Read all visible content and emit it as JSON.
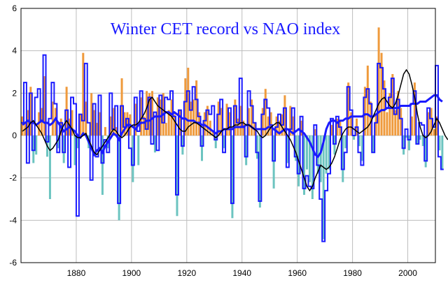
{
  "chart_data": {
    "type": "bar",
    "title": "Winter CET record vs NAO index",
    "xlabel": "",
    "ylabel": "",
    "xlim": [
      1860,
      2010
    ],
    "ylim": [
      -6,
      6
    ],
    "x_ticks": [
      1880,
      1900,
      1920,
      1940,
      1960,
      1980,
      2000
    ],
    "y_ticks": [
      -6,
      -4,
      -2,
      0,
      2,
      4,
      6
    ],
    "grid": true,
    "legend": "none",
    "colors": {
      "positive": "#ef9a3c",
      "negative": "#6cc4c0",
      "step": "#1a1aff",
      "running_mean": "#1a1aff",
      "smooth": "#000000"
    },
    "series": [
      {
        "kind": "bars",
        "start_year": 1860,
        "values": [
          0.9,
          0.6,
          1.2,
          2.3,
          -1.3,
          -0.9,
          1.1,
          1.3,
          2.8,
          -1.0,
          -3.0,
          1.6,
          1.3,
          -0.6,
          0.8,
          -1.3,
          2.3,
          0.8,
          1.2,
          -1.4,
          -0.6,
          1.0,
          3.9,
          1.6,
          -0.6,
          2.0,
          1.2,
          0.6,
          1.1,
          -2.8,
          0.4,
          -0.6,
          0.9,
          1.3,
          0.4,
          -4.0,
          2.7,
          1.1,
          1.1,
          1.0,
          -2.2,
          1.5,
          -1.4,
          1.8,
          0.9,
          2.1,
          2.0,
          2.1,
          -0.8,
          1.8,
          1.7,
          2.0,
          0.6,
          1.2,
          1.7,
          1.0,
          -3.8,
          1.2,
          -0.9,
          2.7,
          3.2,
          1.6,
          1.7,
          2.6,
          1.1,
          -1.2,
          1.1,
          1.4,
          0.7,
          0.2,
          -0.6,
          1.6,
          1.3,
          -0.6,
          1.5,
          1.1,
          -3.9,
          1.7,
          0.8,
          1.4,
          0.7,
          -1.4,
          1.3,
          1.7,
          0.6,
          -1.1,
          -3.4,
          1.3,
          2.2,
          0.9,
          1.1,
          -2.5,
          0.9,
          0.7,
          1.0,
          1.9,
          -1.3,
          1.4,
          0.9,
          -1.2,
          -2.4,
          0.7,
          -2.8,
          -1.6,
          -2.2,
          -3.0,
          0.3,
          -1.8,
          -2.2,
          -4.9,
          -1.8,
          -1.6,
          0.5,
          -0.9,
          0.8,
          0.7,
          -2.2,
          -0.6,
          2.5,
          1.1,
          -0.2,
          0.8,
          -0.5,
          -1.2,
          2.3,
          3.3,
          1.6,
          -0.8,
          1.0,
          5.1,
          3.9,
          2.6,
          1.1,
          2.0,
          2.9,
          1.2,
          2.1,
          1.3,
          -0.9,
          -0.1,
          -0.7,
          0.9,
          2.5,
          -0.4,
          -0.2,
          -0.5,
          -1.5,
          1.1,
          1.3,
          0.3,
          0.9,
          -0.7,
          -1.6
        ]
      },
      {
        "kind": "step",
        "start_year": 1860,
        "values": [
          0.6,
          2.5,
          -1.3,
          2.0,
          -0.7,
          1.8,
          2.2,
          0.7,
          3.8,
          -0.3,
          0.8,
          2.5,
          1.5,
          -0.8,
          0.6,
          -0.8,
          1.2,
          -1.5,
          1.8,
          1.5,
          -3.8,
          1.0,
          0.7,
          3.4,
          0.6,
          -2.1,
          1.5,
          -1.0,
          1.9,
          -1.3,
          -0.2,
          -0.8,
          2.0,
          0.3,
          1.4,
          -3.2,
          1.4,
          0.4,
          0.8,
          -0.6,
          -1.4,
          1.8,
          0.2,
          2.1,
          0.8,
          0.3,
          1.8,
          -0.4,
          1.1,
          -0.7,
          1.9,
          0.6,
          1.8,
          1.7,
          2.1,
          0.9,
          -2.8,
          1.2,
          -0.5,
          1.6,
          2.1,
          1.2,
          2.3,
          1.7,
          0.9,
          -0.5,
          0.7,
          1.2,
          1.0,
          1.4,
          -0.2,
          1.0,
          1.7,
          -0.8,
          0.3,
          1.3,
          -3.2,
          1.4,
          0.6,
          2.7,
          0.4,
          -1.0,
          2.1,
          1.4,
          0.6,
          -0.8,
          -3.1,
          1.0,
          1.7,
          1.3,
          0.5,
          -1.2,
          0.4,
          1.0,
          0.5,
          1.3,
          -1.5,
          0.3,
          1.3,
          -1.0,
          -1.8,
          0.9,
          -2.5,
          -1.9,
          -2.4,
          -2.5,
          0.5,
          -1.4,
          -3.0,
          -5.0,
          -2.6,
          -1.8,
          0.8,
          -0.4,
          0.9,
          0.4,
          -1.6,
          -0.8,
          2.3,
          1.2,
          0.0,
          0.4,
          -0.8,
          -1.4,
          1.8,
          2.2,
          1.5,
          -0.8,
          0.6,
          3.4,
          3.2,
          2.2,
          1.3,
          1.8,
          2.7,
          1.0,
          1.7,
          0.8,
          -0.6,
          0.3,
          -0.2,
          1.5,
          2.1,
          -0.4,
          0.6,
          0.5,
          -1.2,
          1.3,
          0.8,
          0.4,
          3.3,
          -1.0,
          -1.6
        ]
      },
      {
        "kind": "running_mean",
        "start_year": 1860,
        "values": [
          0.5,
          0.6,
          0.7,
          0.6,
          0.6,
          0.5,
          0.6,
          0.7,
          0.6,
          0.6,
          0.5,
          0.6,
          0.8,
          0.6,
          0.4,
          0.2,
          0.3,
          0.4,
          0.3,
          0.2,
          0.0,
          -0.1,
          0.1,
          0.0,
          -0.3,
          -0.6,
          -0.9,
          -0.7,
          -0.6,
          -0.8,
          -0.5,
          -0.3,
          -0.1,
          0.1,
          0.0,
          -0.2,
          0.1,
          0.3,
          0.5,
          0.5,
          0.4,
          0.3,
          0.5,
          0.6,
          0.6,
          0.7,
          0.7,
          0.8,
          0.9,
          0.9,
          0.9,
          1.0,
          1.1,
          1.1,
          1.0,
          1.1,
          1.0,
          0.9,
          0.8,
          0.8,
          0.7,
          0.7,
          0.7,
          0.6,
          0.6,
          0.5,
          0.5,
          0.4,
          0.3,
          0.2,
          0.1,
          0.2,
          0.2,
          0.3,
          0.3,
          0.3,
          0.3,
          0.4,
          0.4,
          0.4,
          0.4,
          0.5,
          0.5,
          0.4,
          0.3,
          0.3,
          0.3,
          0.3,
          0.3,
          0.4,
          0.4,
          0.3,
          0.2,
          0.1,
          0.2,
          0.3,
          0.3,
          0.2,
          0.1,
          0.2,
          0.3,
          0.2,
          0.1,
          -0.1,
          -0.3,
          -0.6,
          -0.9,
          -1.0,
          -0.8,
          -0.3,
          0.3,
          0.6,
          0.7,
          0.7,
          0.6,
          0.7,
          0.7,
          0.8,
          0.8,
          0.9,
          0.9,
          0.9,
          0.9,
          0.9,
          1.0,
          1.0,
          0.9,
          0.9,
          1.0,
          1.1,
          1.2,
          1.2,
          1.3,
          1.3,
          1.3,
          1.3,
          1.3,
          1.4,
          1.4,
          1.4,
          1.4,
          1.5,
          1.5,
          1.5,
          1.6,
          1.6,
          1.6,
          1.7,
          1.8,
          1.9,
          1.9,
          1.7,
          1.6
        ]
      },
      {
        "kind": "smooth",
        "start_year": 1860,
        "values": [
          0.2,
          0.3,
          0.4,
          0.6,
          0.7,
          0.5,
          0.3,
          0.1,
          -0.2,
          -0.5,
          -0.7,
          -0.6,
          -0.4,
          -0.2,
          0.2,
          0.5,
          0.7,
          0.5,
          0.3,
          0.0,
          -0.1,
          -0.1,
          0.0,
          0.1,
          -0.2,
          -0.5,
          -0.8,
          -0.9,
          -0.7,
          -0.5,
          -0.3,
          -0.1,
          0.1,
          0.3,
          0.2,
          0.0,
          -0.1,
          0.0,
          0.2,
          0.4,
          0.5,
          0.5,
          0.6,
          0.8,
          1.0,
          1.3,
          1.7,
          1.8,
          1.6,
          1.4,
          1.3,
          1.2,
          1.1,
          1.0,
          0.9,
          0.7,
          0.5,
          0.3,
          0.2,
          0.2,
          0.4,
          0.5,
          0.6,
          0.6,
          0.5,
          0.4,
          0.3,
          0.2,
          0.1,
          0.0,
          -0.1,
          0.0,
          0.2,
          0.3,
          0.3,
          0.4,
          0.4,
          0.5,
          0.5,
          0.6,
          0.6,
          0.5,
          0.5,
          0.4,
          0.3,
          0.2,
          0.0,
          -0.1,
          0.0,
          0.2,
          0.4,
          0.5,
          0.6,
          0.6,
          0.4,
          0.2,
          0.0,
          -0.2,
          -0.5,
          -0.8,
          -1.2,
          -1.6,
          -2.0,
          -2.4,
          -2.6,
          -2.4,
          -2.0,
          -1.7,
          -1.4,
          -1.5,
          -1.6,
          -1.5,
          -1.3,
          -1.0,
          -0.6,
          -0.2,
          0.1,
          0.3,
          0.4,
          0.4,
          0.3,
          0.2,
          0.1,
          0.2,
          0.3,
          0.4,
          0.6,
          0.9,
          1.2,
          1.5,
          1.7,
          1.8,
          1.6,
          1.4,
          1.3,
          1.5,
          1.9,
          2.4,
          2.9,
          3.1,
          2.9,
          2.4,
          1.8,
          1.0,
          0.4,
          0.0,
          -0.1,
          0.0,
          0.2,
          0.5,
          0.8,
          0.6,
          0.3,
          0.0,
          -0.2
        ]
      }
    ]
  }
}
